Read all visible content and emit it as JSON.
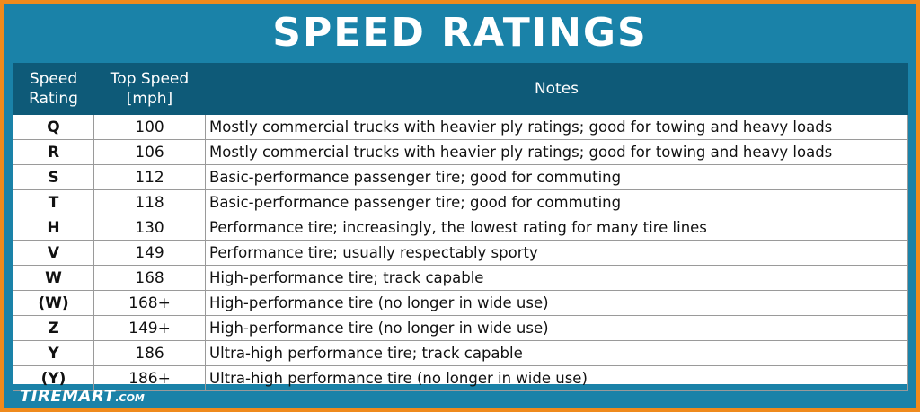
{
  "title": "SPEED RATINGS",
  "table": {
    "headers": {
      "rating_line1": "Speed",
      "rating_line2": "Rating",
      "speed_line1": "Top Speed",
      "speed_line2": "[mph]",
      "notes": "Notes"
    },
    "rows": [
      {
        "rating": "Q",
        "speed": "100",
        "notes": "Mostly commercial trucks with heavier ply ratings; good for towing and heavy loads"
      },
      {
        "rating": "R",
        "speed": "106",
        "notes": "Mostly commercial trucks with heavier ply ratings; good for towing and heavy loads"
      },
      {
        "rating": "S",
        "speed": "112",
        "notes": "Basic-performance passenger tire; good for commuting"
      },
      {
        "rating": "T",
        "speed": "118",
        "notes": "Basic-performance passenger tire; good for commuting"
      },
      {
        "rating": "H",
        "speed": "130",
        "notes": "Performance tire; increasingly, the lowest rating for many tire lines"
      },
      {
        "rating": "V",
        "speed": "149",
        "notes": "Performance tire; usually respectably sporty"
      },
      {
        "rating": "W",
        "speed": "168",
        "notes": "High-performance tire; track capable"
      },
      {
        "rating": "(W)",
        "speed": "168+",
        "notes": "High-performance tire (no longer in wide use)"
      },
      {
        "rating": "Z",
        "speed": "149+",
        "notes": "High-performance tire (no longer in wide use)"
      },
      {
        "rating": "Y",
        "speed": "186",
        "notes": "Ultra-high performance tire; track capable"
      },
      {
        "rating": "(Y)",
        "speed": "186+",
        "notes": "Ultra-high performance tire (no longer in wide use)"
      }
    ]
  },
  "logo": {
    "name": "TIREMART",
    "suffix": ".COM"
  },
  "colors": {
    "border": "#ef8a1c",
    "panel": "#1a82a8",
    "header": "#0e5a78"
  }
}
